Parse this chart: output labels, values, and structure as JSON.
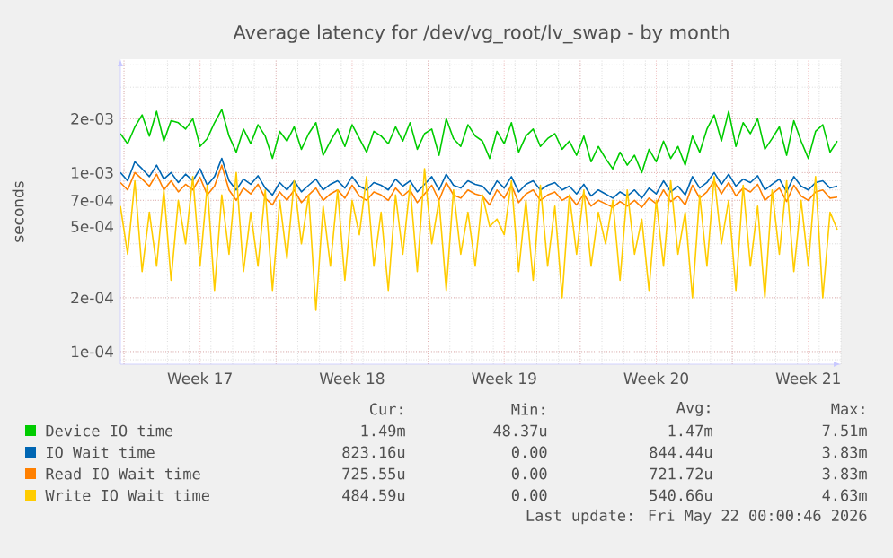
{
  "chart_data": {
    "type": "line",
    "title": "Average latency for /dev/vg_root/lv_swap - by month",
    "ylabel": "seconds",
    "log": "y",
    "grid": true,
    "legend": "bottom",
    "marker": "none",
    "line_style": "solid",
    "xlim": [
      "2026-04-19T20:00",
      "2026-05-23T00:00"
    ],
    "ylim": [
      8.5e-05,
      0.0043
    ],
    "xticks": [
      {
        "value": "2026-04-20",
        "label": null
      },
      {
        "value": "2026-04-23T12:00",
        "label": "Week 17"
      },
      {
        "value": "2026-04-27",
        "label": null
      },
      {
        "value": "2026-04-30T12:00",
        "label": "Week 18"
      },
      {
        "value": "2026-05-04",
        "label": null
      },
      {
        "value": "2026-05-07T12:00",
        "label": "Week 19"
      },
      {
        "value": "2026-05-11",
        "label": null
      },
      {
        "value": "2026-05-14T12:00",
        "label": "Week 20"
      },
      {
        "value": "2026-05-18",
        "label": null
      },
      {
        "value": "2026-05-21T12:00",
        "label": "Week 21"
      }
    ],
    "yticks": [
      {
        "value": 0.0001,
        "label": "1e-04"
      },
      {
        "value": 0.0002,
        "label": "2e-04"
      },
      {
        "value": 0.0005,
        "label": "5e-04"
      },
      {
        "value": 0.0007,
        "label": "7e-04"
      },
      {
        "value": 0.001,
        "label": "1e-03"
      },
      {
        "value": 0.002,
        "label": "2e-03"
      }
    ],
    "x": [
      "2026-04-19T20:00",
      "2026-04-20T04:00",
      "2026-04-20T12:00",
      "2026-04-20T20:00",
      "2026-04-21T04:00",
      "2026-04-21T12:00",
      "2026-04-21T20:00",
      "2026-04-22T04:00",
      "2026-04-22T12:00",
      "2026-04-22T20:00",
      "2026-04-23T04:00",
      "2026-04-23T12:00",
      "2026-04-23T20:00",
      "2026-04-24T04:00",
      "2026-04-24T12:00",
      "2026-04-24T20:00",
      "2026-04-25T04:00",
      "2026-04-25T12:00",
      "2026-04-25T20:00",
      "2026-04-26T04:00",
      "2026-04-26T12:00",
      "2026-04-26T20:00",
      "2026-04-27T04:00",
      "2026-04-27T12:00",
      "2026-04-27T20:00",
      "2026-04-28T04:00",
      "2026-04-28T12:00",
      "2026-04-28T20:00",
      "2026-04-29T04:00",
      "2026-04-29T12:00",
      "2026-04-29T20:00",
      "2026-04-30T04:00",
      "2026-04-30T12:00",
      "2026-04-30T20:00",
      "2026-05-01T04:00",
      "2026-05-01T12:00",
      "2026-05-01T20:00",
      "2026-05-02T04:00",
      "2026-05-02T12:00",
      "2026-05-02T20:00",
      "2026-05-03T04:00",
      "2026-05-03T12:00",
      "2026-05-03T20:00",
      "2026-05-04T04:00",
      "2026-05-04T12:00",
      "2026-05-04T20:00",
      "2026-05-05T04:00",
      "2026-05-05T12:00",
      "2026-05-05T20:00",
      "2026-05-06T04:00",
      "2026-05-06T12:00",
      "2026-05-06T20:00",
      "2026-05-07T04:00",
      "2026-05-07T12:00",
      "2026-05-07T20:00",
      "2026-05-08T04:00",
      "2026-05-08T12:00",
      "2026-05-08T20:00",
      "2026-05-09T04:00",
      "2026-05-09T12:00",
      "2026-05-09T20:00",
      "2026-05-10T04:00",
      "2026-05-10T12:00",
      "2026-05-10T20:00",
      "2026-05-11T04:00",
      "2026-05-11T12:00",
      "2026-05-11T20:00",
      "2026-05-12T04:00",
      "2026-05-12T12:00",
      "2026-05-12T20:00",
      "2026-05-13T04:00",
      "2026-05-13T12:00",
      "2026-05-13T20:00",
      "2026-05-14T04:00",
      "2026-05-14T12:00",
      "2026-05-14T20:00",
      "2026-05-15T04:00",
      "2026-05-15T12:00",
      "2026-05-15T20:00",
      "2026-05-16T04:00",
      "2026-05-16T12:00",
      "2026-05-16T20:00",
      "2026-05-17T04:00",
      "2026-05-17T12:00",
      "2026-05-17T20:00",
      "2026-05-18T04:00",
      "2026-05-18T12:00",
      "2026-05-18T20:00",
      "2026-05-19T04:00",
      "2026-05-19T12:00",
      "2026-05-19T20:00",
      "2026-05-20T04:00",
      "2026-05-20T12:00",
      "2026-05-20T20:00",
      "2026-05-21T04:00",
      "2026-05-21T12:00",
      "2026-05-21T20:00",
      "2026-05-22T04:00",
      "2026-05-22T12:00",
      "2026-05-22T20:00"
    ],
    "series": [
      {
        "name": "Device IO time",
        "color": "#00cc00",
        "values": [
          0.00165,
          0.00145,
          0.0018,
          0.0021,
          0.0016,
          0.0022,
          0.0015,
          0.00195,
          0.0019,
          0.00175,
          0.002,
          0.0014,
          0.00155,
          0.0019,
          0.00225,
          0.0016,
          0.0013,
          0.00175,
          0.00145,
          0.00185,
          0.0016,
          0.0012,
          0.0017,
          0.0015,
          0.0018,
          0.00135,
          0.00165,
          0.0019,
          0.00125,
          0.0015,
          0.00175,
          0.0014,
          0.00185,
          0.00155,
          0.0013,
          0.0017,
          0.0016,
          0.00145,
          0.0018,
          0.0015,
          0.0019,
          0.00135,
          0.00165,
          0.00175,
          0.00125,
          0.002,
          0.00155,
          0.0014,
          0.00185,
          0.0016,
          0.0015,
          0.0012,
          0.0017,
          0.00145,
          0.0019,
          0.0013,
          0.0016,
          0.00175,
          0.0014,
          0.00155,
          0.00165,
          0.00135,
          0.0015,
          0.00125,
          0.0016,
          0.00115,
          0.0014,
          0.0012,
          0.00105,
          0.0013,
          0.0011,
          0.00125,
          0.001,
          0.00135,
          0.00115,
          0.0015,
          0.0012,
          0.0014,
          0.0011,
          0.0016,
          0.0013,
          0.00175,
          0.0021,
          0.0015,
          0.0022,
          0.0014,
          0.0019,
          0.00165,
          0.002,
          0.00135,
          0.00155,
          0.0018,
          0.00125,
          0.00195,
          0.0015,
          0.0012,
          0.0017,
          0.00185,
          0.0013,
          0.0015
        ]
      },
      {
        "name": "IO Wait time",
        "color": "#0066b3",
        "values": [
          0.001,
          0.0009,
          0.00115,
          0.00105,
          0.00095,
          0.0011,
          0.00092,
          0.001,
          0.00088,
          0.00098,
          0.0009,
          0.00105,
          0.00085,
          0.00095,
          0.0012,
          0.0009,
          0.0008,
          0.00092,
          0.00086,
          0.00096,
          0.00082,
          0.00075,
          0.00088,
          0.0008,
          0.0009,
          0.00078,
          0.00085,
          0.00092,
          0.0008,
          0.00086,
          0.0009,
          0.00082,
          0.00095,
          0.00084,
          0.0008,
          0.00088,
          0.00085,
          0.0008,
          0.00092,
          0.00084,
          0.0009,
          0.00078,
          0.00086,
          0.00095,
          0.0008,
          0.00098,
          0.00085,
          0.00082,
          0.0009,
          0.00086,
          0.00084,
          0.00076,
          0.0009,
          0.00082,
          0.00095,
          0.00078,
          0.00086,
          0.0009,
          0.0008,
          0.00085,
          0.00088,
          0.0008,
          0.00084,
          0.00076,
          0.00086,
          0.00074,
          0.0008,
          0.00076,
          0.00072,
          0.00078,
          0.00074,
          0.0008,
          0.00072,
          0.00082,
          0.00076,
          0.0009,
          0.00078,
          0.00084,
          0.00075,
          0.00095,
          0.00082,
          0.00088,
          0.001,
          0.00086,
          0.00098,
          0.00084,
          0.00092,
          0.00088,
          0.00096,
          0.0008,
          0.00086,
          0.00092,
          0.00078,
          0.00095,
          0.00084,
          0.0008,
          0.00088,
          0.0009,
          0.00082,
          0.00084
        ]
      },
      {
        "name": "Read IO Wait time",
        "color": "#ff8000",
        "values": [
          0.00088,
          0.0008,
          0.001,
          0.00092,
          0.00084,
          0.00098,
          0.0008,
          0.0009,
          0.00078,
          0.00086,
          0.0008,
          0.00094,
          0.00075,
          0.00084,
          0.0011,
          0.0008,
          0.0007,
          0.00082,
          0.00076,
          0.00086,
          0.00072,
          0.00066,
          0.00078,
          0.0007,
          0.0008,
          0.00068,
          0.00075,
          0.00082,
          0.0007,
          0.00076,
          0.0008,
          0.00072,
          0.00085,
          0.00074,
          0.0007,
          0.00078,
          0.00075,
          0.0007,
          0.00082,
          0.00074,
          0.0008,
          0.00068,
          0.00076,
          0.00085,
          0.0007,
          0.00088,
          0.00075,
          0.00072,
          0.0008,
          0.00076,
          0.00074,
          0.00066,
          0.0008,
          0.00072,
          0.00085,
          0.00068,
          0.00076,
          0.0008,
          0.0007,
          0.00075,
          0.00078,
          0.0007,
          0.00074,
          0.00066,
          0.00076,
          0.00065,
          0.0007,
          0.00067,
          0.00064,
          0.00069,
          0.00065,
          0.0007,
          0.00064,
          0.00072,
          0.00067,
          0.0008,
          0.00069,
          0.00074,
          0.00066,
          0.00085,
          0.00072,
          0.00078,
          0.0009,
          0.00076,
          0.00088,
          0.00074,
          0.00082,
          0.00078,
          0.00086,
          0.0007,
          0.00076,
          0.00082,
          0.00069,
          0.00085,
          0.00074,
          0.0007,
          0.00078,
          0.0008,
          0.00072,
          0.00073
        ]
      },
      {
        "name": "Write IO Wait time",
        "color": "#ffcc00",
        "values": [
          0.00065,
          0.00035,
          0.0009,
          0.00028,
          0.0006,
          0.0003,
          0.0008,
          0.00025,
          0.0007,
          0.0004,
          0.00095,
          0.0003,
          0.00085,
          0.00022,
          0.00075,
          0.00035,
          0.001,
          0.00028,
          0.0006,
          0.0003,
          0.0008,
          0.00022,
          0.0007,
          0.00033,
          0.0009,
          0.0004,
          0.00075,
          0.00017,
          0.00065,
          0.0003,
          0.0008,
          0.00025,
          0.0007,
          0.00045,
          0.00095,
          0.0003,
          0.0006,
          0.00022,
          0.00075,
          0.00035,
          0.00085,
          0.00028,
          0.00105,
          0.0004,
          0.0007,
          0.00022,
          0.0008,
          0.00035,
          0.0006,
          0.0003,
          0.00075,
          0.0005,
          0.00055,
          0.00045,
          0.0009,
          0.00028,
          0.0007,
          0.00025,
          0.00085,
          0.0003,
          0.00065,
          0.0002,
          0.00075,
          0.00035,
          0.0008,
          0.0003,
          0.0006,
          0.0004,
          0.0007,
          0.00025,
          0.0008,
          0.00035,
          0.00055,
          0.00022,
          0.0007,
          0.0003,
          0.0009,
          0.00035,
          0.0006,
          0.0002,
          0.00075,
          0.0003,
          0.00095,
          0.0004,
          0.0007,
          0.00022,
          0.00085,
          0.0003,
          0.00065,
          0.0002,
          0.0008,
          0.00035,
          0.0009,
          0.00028,
          0.0007,
          0.0003,
          0.00095,
          0.0002,
          0.0006,
          0.00048
        ]
      }
    ],
    "annotations": [
      "Cur:",
      "Min:",
      "Avg:",
      "Max:",
      "1.49m",
      "48.37u",
      "1.47m",
      "7.51m",
      "823.16u",
      "0.00",
      "844.44u",
      "3.83m",
      "725.55u",
      "0.00",
      "721.72u",
      "3.83m",
      "484.59u",
      "0.00",
      "540.66u",
      "4.63m",
      "Last update: Fri May 22 00:00:46 2026"
    ]
  }
}
